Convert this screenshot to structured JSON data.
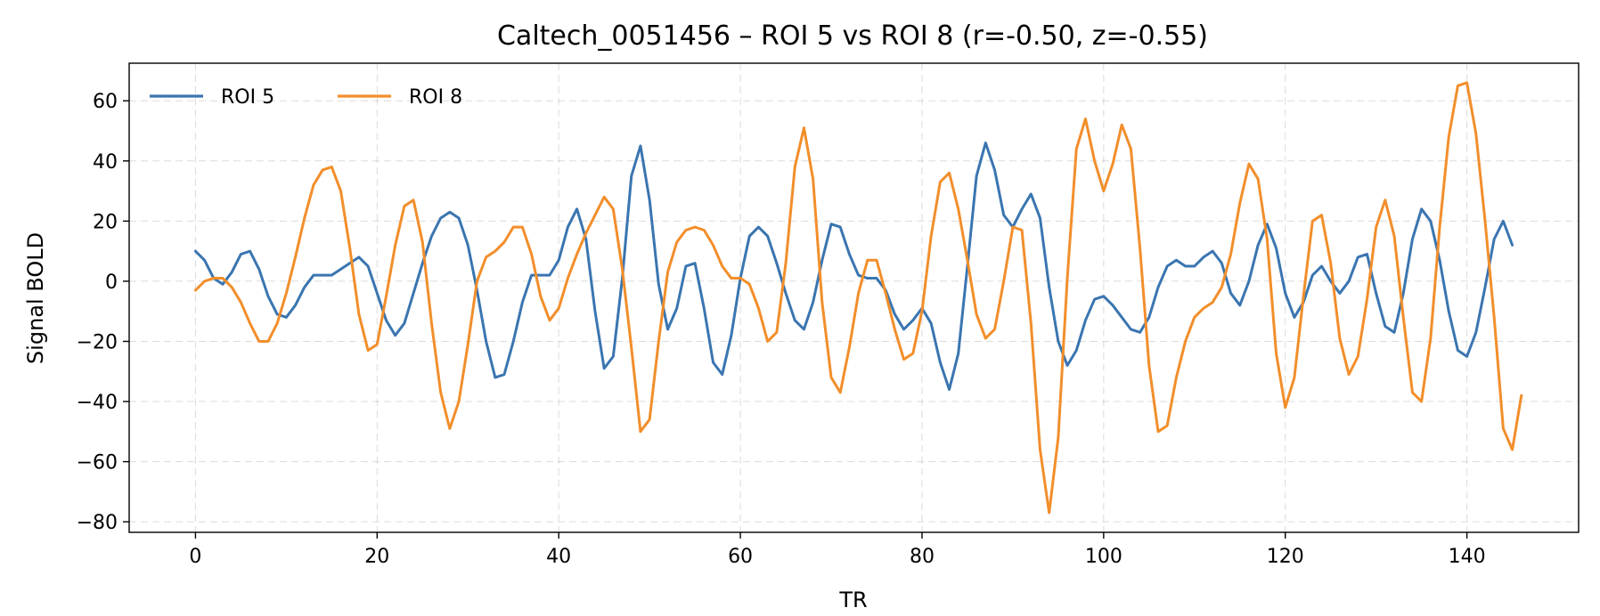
{
  "chart_data": {
    "type": "line",
    "title": "Caltech_0051456 – ROI 5 vs ROI 8  (r=-0.50, z=-0.55)",
    "xlabel": "TR",
    "ylabel": "Signal BOLD",
    "xlim": [
      -7.3,
      152.3
    ],
    "ylim": [
      -83.5,
      72.5
    ],
    "xticks": [
      0,
      20,
      40,
      60,
      80,
      100,
      120,
      140
    ],
    "yticks": [
      -80,
      -60,
      -40,
      -20,
      0,
      20,
      40,
      60
    ],
    "grid": true,
    "legend": "top-left",
    "series": [
      {
        "name": "ROI 5",
        "color": "#3a75b0",
        "values": [
          10,
          7,
          1,
          -1,
          3,
          9,
          10,
          4,
          -5,
          -11,
          -12,
          -8,
          -2,
          2,
          2,
          2,
          4,
          6,
          8,
          5,
          -4,
          -13,
          -18,
          -14,
          -4,
          6,
          15,
          21,
          23,
          21,
          12,
          -3,
          -20,
          -32,
          -31,
          -20,
          -7,
          2,
          2,
          2,
          7,
          18,
          24,
          14,
          -10,
          -29,
          -25,
          1,
          35,
          45,
          27,
          -1,
          -16,
          -9,
          5,
          6,
          -9,
          -27,
          -31,
          -18,
          1,
          15,
          18,
          15,
          6,
          -4,
          -13,
          -16,
          -7,
          7,
          19,
          18,
          9,
          2,
          1,
          1,
          -3,
          -11,
          -16,
          -13,
          -9,
          -14,
          -27,
          -36,
          -24,
          5,
          35,
          46,
          37,
          22,
          18,
          24,
          29,
          21,
          -2,
          -20,
          -28,
          -23,
          -13,
          -6,
          -5,
          -8,
          -12,
          -16,
          -17,
          -12,
          -2,
          5,
          7,
          5,
          5,
          8,
          10,
          6,
          -4,
          -8,
          0,
          12,
          19,
          11,
          -4,
          -12,
          -7,
          2,
          5,
          0,
          -4,
          0,
          8,
          9,
          -4,
          -15,
          -17,
          -4,
          14,
          24,
          20,
          7,
          -10,
          -23,
          -25,
          -17,
          -2,
          14,
          20,
          12
        ]
      },
      {
        "name": "ROI 8",
        "color": "#f28e2b",
        "values": [
          -3,
          0,
          1,
          1,
          -2,
          -7,
          -14,
          -20,
          -20,
          -14,
          -4,
          8,
          21,
          32,
          37,
          38,
          30,
          11,
          -11,
          -23,
          -21,
          -5,
          12,
          25,
          27,
          13,
          -14,
          -37,
          -49,
          -40,
          -21,
          0,
          8,
          10,
          13,
          18,
          18,
          9,
          -5,
          -13,
          -9,
          1,
          9,
          16,
          22,
          28,
          24,
          4,
          -22,
          -50,
          -46,
          -20,
          3,
          13,
          17,
          18,
          17,
          12,
          5,
          1,
          1,
          -1,
          -9,
          -20,
          -17,
          6,
          38,
          51,
          34,
          -7,
          -32,
          -37,
          -22,
          -4,
          7,
          7,
          -4,
          -16,
          -26,
          -24,
          -10,
          15,
          33,
          36,
          24,
          7,
          -11,
          -19,
          -16,
          0,
          18,
          17,
          -14,
          -56,
          -77,
          -52,
          1,
          44,
          54,
          40,
          30,
          39,
          52,
          44,
          11,
          -28,
          -50,
          -48,
          -32,
          -20,
          -12,
          -9,
          -7,
          -2,
          9,
          26,
          39,
          34,
          14,
          -24,
          -42,
          -32,
          -5,
          20,
          22,
          6,
          -19,
          -31,
          -25,
          -6,
          18,
          27,
          15,
          -12,
          -37,
          -40,
          -19,
          18,
          48,
          65,
          66,
          49,
          20,
          -12,
          -49,
          -56,
          -38
        ]
      }
    ]
  }
}
